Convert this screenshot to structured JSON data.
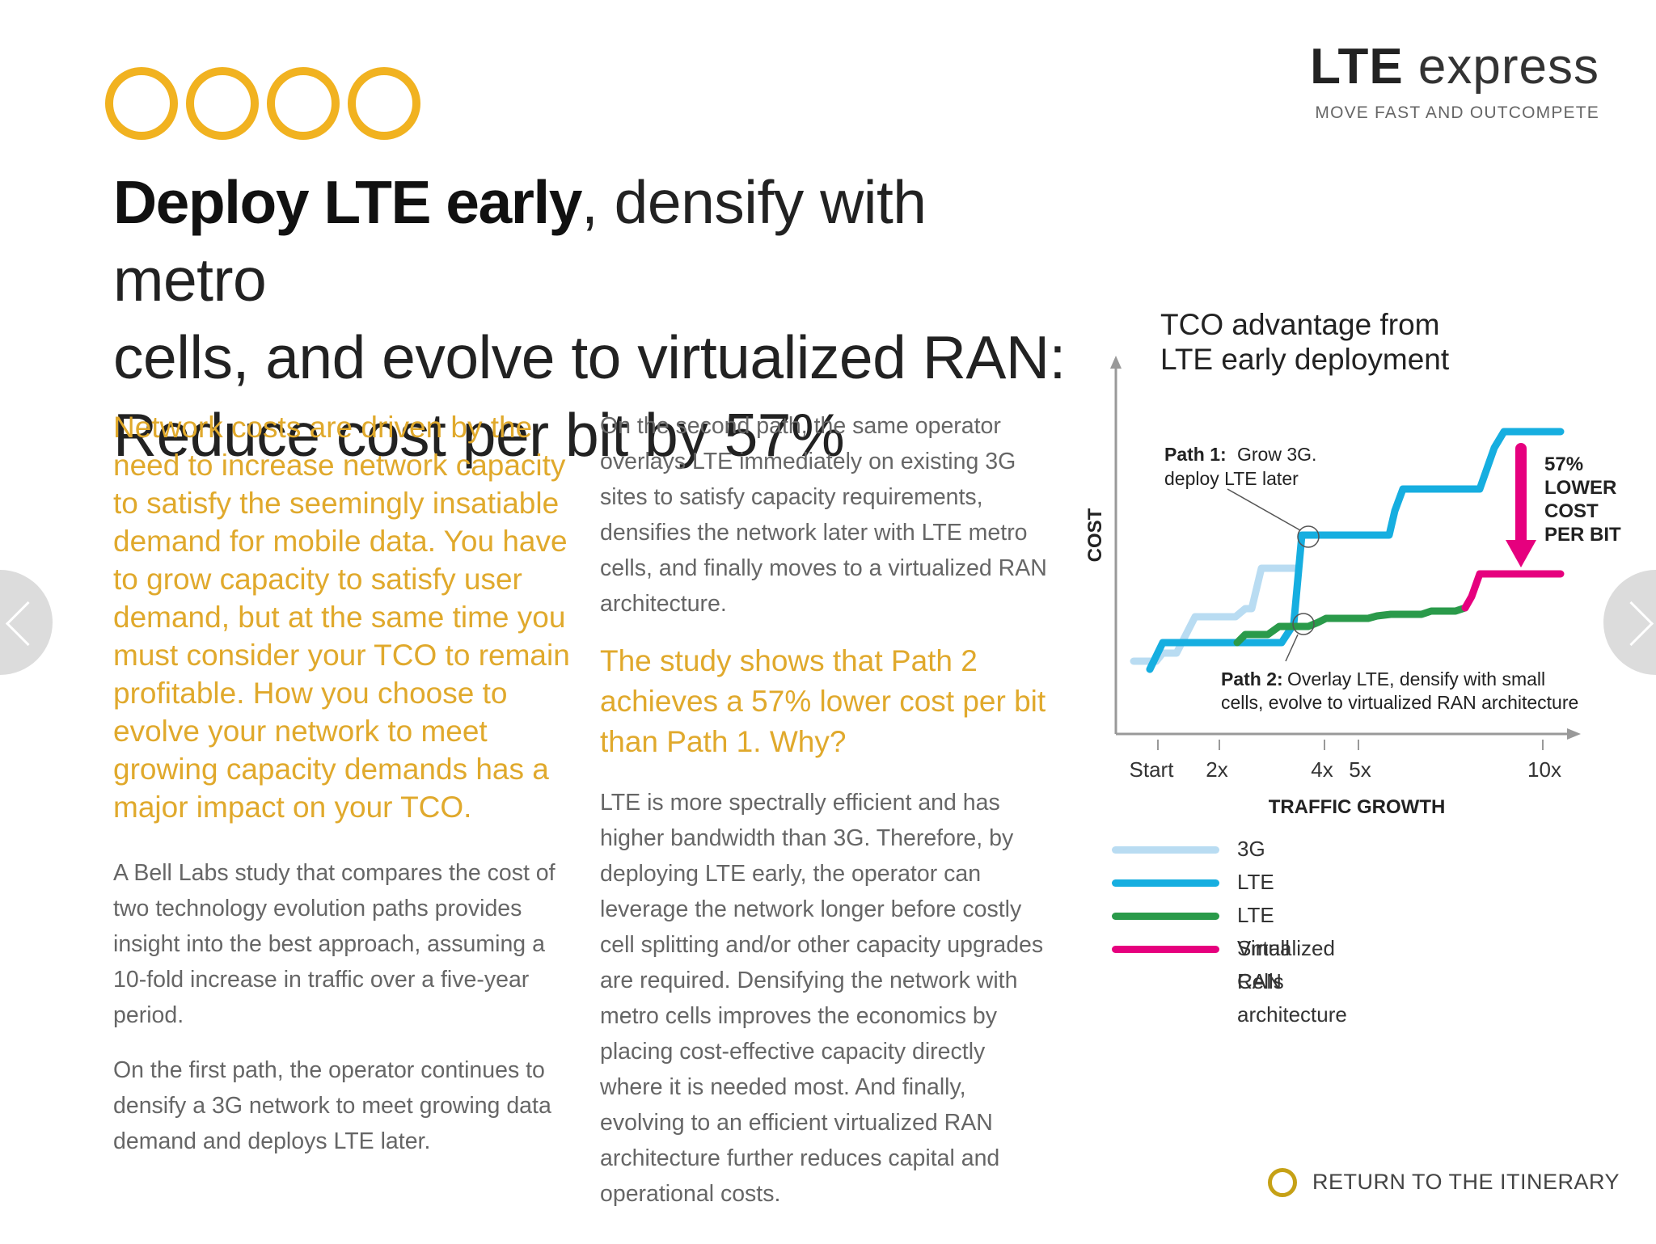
{
  "brand": {
    "title_bold": "LTE",
    "title_light": "express",
    "tagline": "MOVE FAST AND OUTCOMPETE"
  },
  "decor": {
    "rings_icon": "four-gold-rings",
    "accent_color": "#f1b220"
  },
  "headline": {
    "bold": "Deploy LTE early",
    "line1_rest": ", densify with metro",
    "line2": "cells, and evolve to virtualized RAN:",
    "line3": "Reduce cost per bit by 57%"
  },
  "column1": {
    "lead": "Network costs are driven by the need to increase network capacity to satisfy the seemingly insatiable demand for mobile data. You have to grow capacity to satisfy user demand, but at the same time you must consider your TCO to remain profitable. How you choose to evolve your network to meet growing capacity demands has a major impact on your TCO.",
    "p1": "A Bell Labs study that compares the cost of two technology evolution paths provides insight into the best approach, assuming a 10-fold increase in traffic over a five-year period.",
    "p2": "On the first path, the operator continues to densify a 3G network to meet growing data demand and deploys LTE later."
  },
  "column2": {
    "p1": "On the second path, the same operator overlays LTE immediately on existing 3G sites to satisfy capacity requirements, densifies the network later with LTE metro cells, and finally moves to a virtualized RAN architecture.",
    "lead": "The study shows that Path 2 achieves a 57% lower cost per bit than Path 1. Why?",
    "p2": "LTE is more spectrally efficient and has higher bandwidth than 3G. Therefore, by deploying LTE early, the operator can leverage the network longer before costly cell splitting and/or other capacity upgrades are required. Densifying the network with metro cells improves the economics by placing cost-effective capacity directly where it is needed most. And finally, evolving to an efficient virtualized RAN architecture further reduces capital and operational costs."
  },
  "chart": {
    "title_line1": "TCO advantage from",
    "title_line2": "LTE early deployment",
    "ylabel": "COST",
    "xlabel": "TRAFFIC GROWTH",
    "xticks": [
      "Start",
      "2x",
      "4x",
      "5x",
      "10x"
    ],
    "path1_bold": "Path 1:",
    "path1_line1": "Grow 3G.",
    "path1_line2": "deploy LTE later",
    "path2_bold": "Path 2:",
    "path2_line1": "Overlay LTE, densify with small",
    "path2_line2": "cells, evolve to virtualized RAN architecture",
    "callout": [
      "57%",
      "LOWER",
      "COST",
      "PER BIT"
    ],
    "legend": [
      {
        "label": "3G",
        "color": "#b9dcf2"
      },
      {
        "label": "LTE",
        "color": "#16aee0"
      },
      {
        "label": "LTE Small Cells",
        "color": "#2a9a4a"
      },
      {
        "label": "Virtualized RAN architecture",
        "color": "#e6007e"
      }
    ],
    "arrow_color": "#e6007e"
  },
  "chart_data": {
    "type": "line",
    "title": "TCO advantage from LTE early deployment",
    "xlabel": "TRAFFIC GROWTH",
    "ylabel": "COST",
    "xticks": [
      "Start",
      "2x",
      "4x",
      "5x",
      "10x"
    ],
    "series": [
      {
        "name": "3G"
      },
      {
        "name": "LTE"
      },
      {
        "name": "LTE Small Cells"
      },
      {
        "name": "Virtualized RAN architecture"
      }
    ],
    "annotation": "57% LOWER COST PER BIT"
  },
  "footer": {
    "return_label": "RETURN TO THE ITINERARY"
  }
}
